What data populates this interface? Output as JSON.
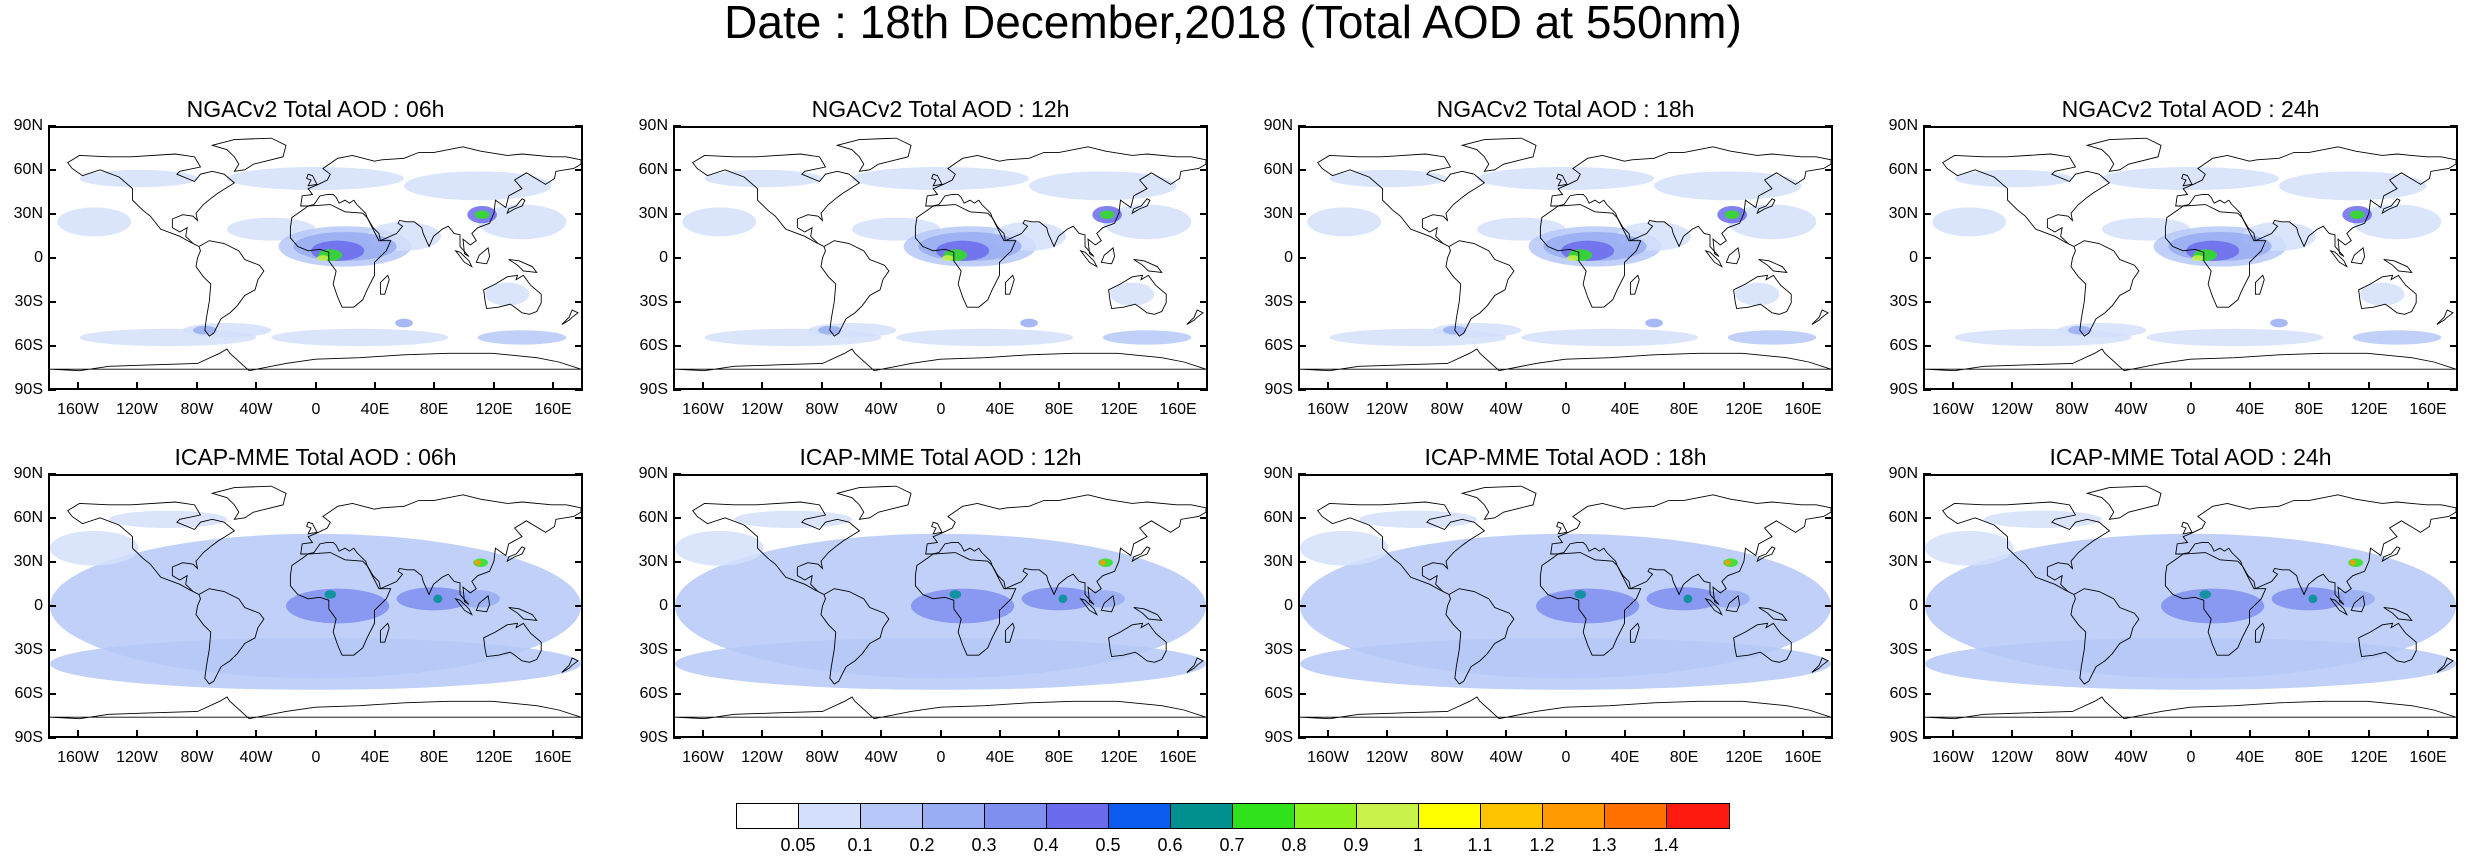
{
  "title": "Date : 18th December,2018 (Total AOD at 550nm)",
  "panels": [
    {
      "title": "NGACv2 Total AOD : 06h",
      "model": "NGACv2",
      "hour": "06h"
    },
    {
      "title": "NGACv2 Total AOD : 12h",
      "model": "NGACv2",
      "hour": "12h"
    },
    {
      "title": "NGACv2 Total AOD : 18h",
      "model": "NGACv2",
      "hour": "18h"
    },
    {
      "title": "NGACv2 Total AOD : 24h",
      "model": "NGACv2",
      "hour": "24h"
    },
    {
      "title": "ICAP-MME Total AOD : 06h",
      "model": "ICAP-MME",
      "hour": "06h"
    },
    {
      "title": "ICAP-MME Total AOD : 12h",
      "model": "ICAP-MME",
      "hour": "12h"
    },
    {
      "title": "ICAP-MME Total AOD : 18h",
      "model": "ICAP-MME",
      "hour": "18h"
    },
    {
      "title": "ICAP-MME Total AOD : 24h",
      "model": "ICAP-MME",
      "hour": "24h"
    }
  ],
  "lat_labels": [
    "90N",
    "60N",
    "30N",
    "0",
    "30S",
    "60S",
    "90S"
  ],
  "lon_labels": [
    "160W",
    "120W",
    "80W",
    "40W",
    "0",
    "40E",
    "80E",
    "120E",
    "160E"
  ],
  "colorbar": {
    "levels": [
      "0.05",
      "0.1",
      "0.2",
      "0.3",
      "0.4",
      "0.5",
      "0.6",
      "0.7",
      "0.8",
      "0.9",
      "1",
      "1.1",
      "1.2",
      "1.3",
      "1.4"
    ],
    "colors": [
      "#ffffff",
      "#d4e0fb",
      "#b5c8f7",
      "#98adf2",
      "#7f8ff0",
      "#6a6aec",
      "#0c5cf0",
      "#009090",
      "#2fe21b",
      "#8cf21e",
      "#c8f24a",
      "#ffff00",
      "#ffc400",
      "#ff9a00",
      "#ff7000",
      "#ff1a10"
    ]
  }
}
